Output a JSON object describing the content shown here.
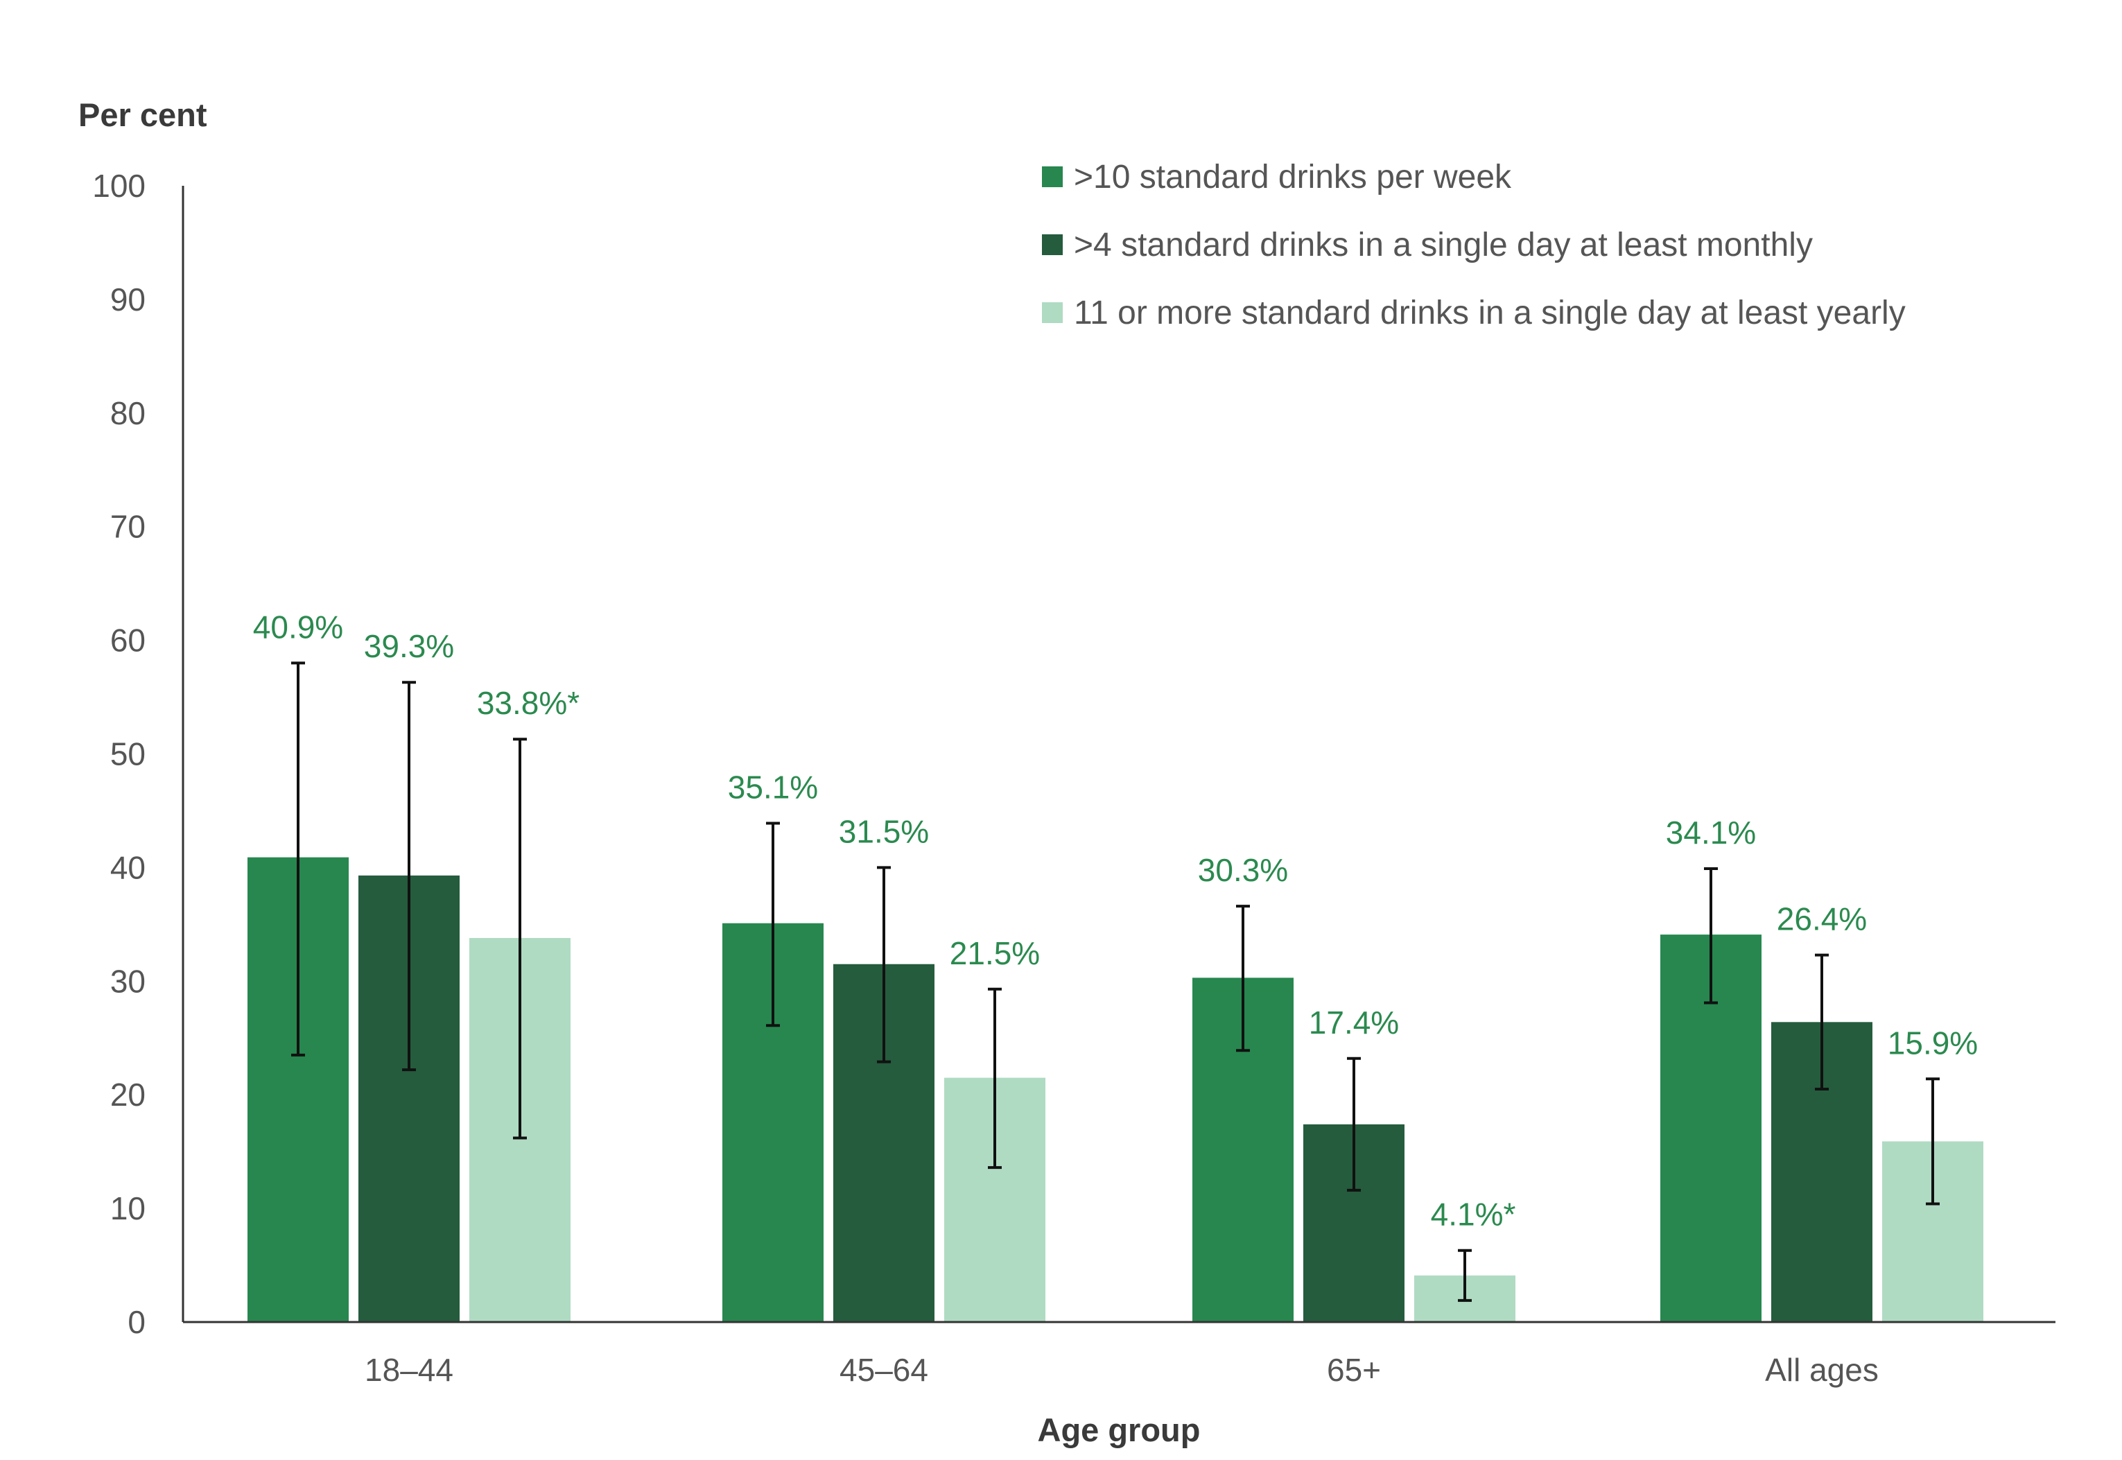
{
  "chart_data": {
    "type": "bar",
    "ylabel": "Per cent",
    "xlabel": "Age group",
    "ylim": [
      0,
      100
    ],
    "yticks": [
      0,
      10,
      20,
      30,
      40,
      50,
      60,
      70,
      80,
      90,
      100
    ],
    "categories": [
      "18–44",
      "45–64",
      "65+",
      "All ages"
    ],
    "legend_position": "top-right",
    "grid": false,
    "error_bars": true,
    "series": [
      {
        "name": ">10 standard drinks per week",
        "color": "#27874f",
        "values": [
          40.9,
          35.1,
          30.3,
          34.1
        ],
        "labels": [
          "40.9%",
          "35.1%",
          "30.3%",
          "34.1%"
        ],
        "error_low": [
          23.5,
          26.1,
          23.9,
          28.1
        ],
        "error_high": [
          58.0,
          43.9,
          36.6,
          39.9
        ]
      },
      {
        "name": ">4 standard drinks in a single day at least monthly",
        "color": "#245c3d",
        "values": [
          39.3,
          31.5,
          17.4,
          26.4
        ],
        "labels": [
          "39.3%",
          "31.5%",
          "17.4%",
          "26.4%"
        ],
        "error_low": [
          22.2,
          22.9,
          11.6,
          20.5
        ],
        "error_high": [
          56.3,
          40.0,
          23.2,
          32.3
        ]
      },
      {
        "name": "11 or more standard drinks in a single day at least yearly",
        "color": "#afdbc2",
        "values": [
          33.8,
          21.5,
          4.1,
          15.9
        ],
        "labels": [
          "33.8%*",
          "21.5%",
          "4.1%*",
          "15.9%"
        ],
        "error_low": [
          16.2,
          13.6,
          1.9,
          10.4
        ],
        "error_high": [
          51.3,
          29.3,
          6.3,
          21.4
        ]
      }
    ],
    "label_color": "#2b8a4f"
  }
}
